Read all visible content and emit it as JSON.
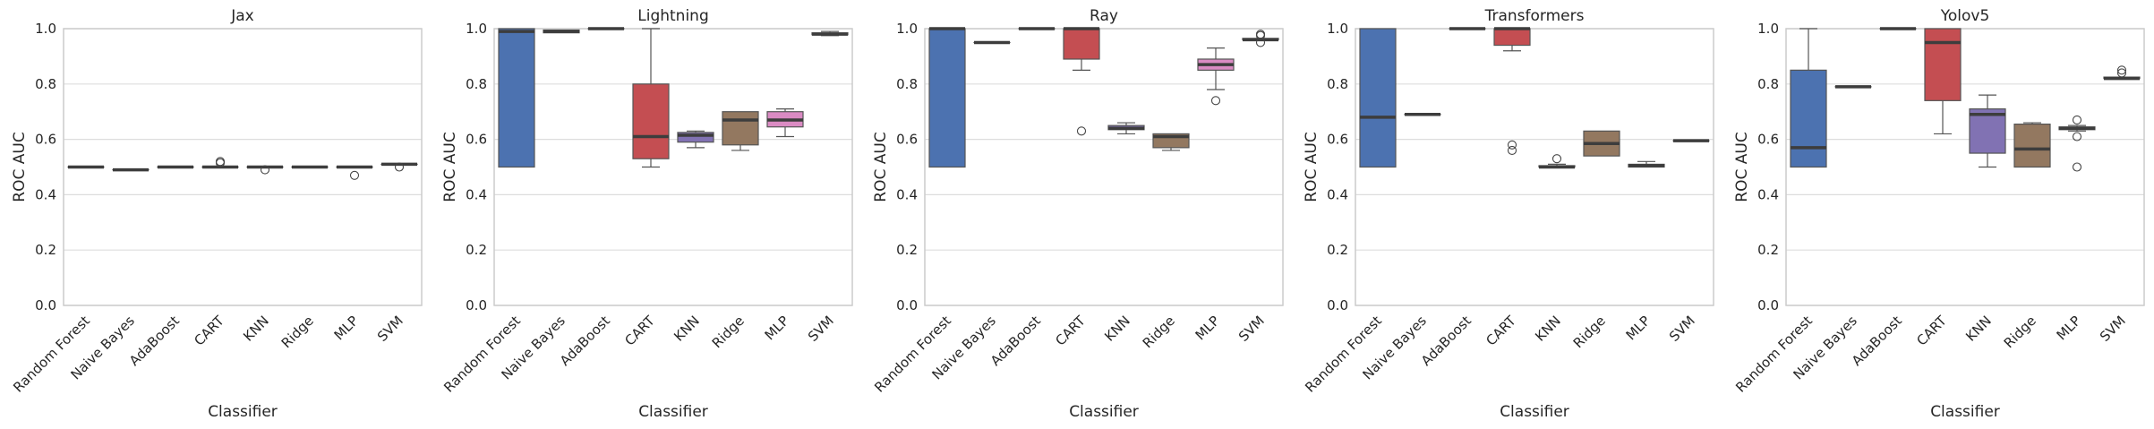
{
  "figure": {
    "shared": {
      "ylabel": "ROC AUC",
      "xlabel": "Classifier",
      "ylim": [
        0,
        1
      ],
      "yticks": [
        0.0,
        0.2,
        0.4,
        0.6,
        0.8,
        1.0
      ],
      "ytick_labels": [
        "0.0",
        "0.2",
        "0.4",
        "0.6",
        "0.8",
        "1.0"
      ],
      "grid": "horizontal"
    },
    "palette": {
      "Random Forest": "#4c72b0",
      "Naive Bayes": "#dd8452",
      "AdaBoost": "#55a868",
      "CART": "#c44e52",
      "KNN": "#8172b3",
      "Ridge": "#937860",
      "MLP": "#da8bc3",
      "SVM": "#8c8c8c"
    },
    "median_color": "#3d3d3d"
  },
  "chart_data": [
    {
      "type": "box",
      "title": "Jax",
      "xlabel": "Classifier",
      "ylabel": "ROC AUC",
      "ylim": [
        0,
        1
      ],
      "categories": [
        "Random Forest",
        "Naive Bayes",
        "AdaBoost",
        "CART",
        "KNN",
        "Ridge",
        "MLP",
        "SVM"
      ],
      "boxes": [
        {
          "category": "Random Forest",
          "whislo": 0.5,
          "q1": 0.5,
          "med": 0.5,
          "q3": 0.5,
          "whishi": 0.5,
          "fliers": []
        },
        {
          "category": "Naive Bayes",
          "whislo": 0.49,
          "q1": 0.49,
          "med": 0.49,
          "q3": 0.49,
          "whishi": 0.49,
          "fliers": []
        },
        {
          "category": "AdaBoost",
          "whislo": 0.5,
          "q1": 0.5,
          "med": 0.5,
          "q3": 0.5,
          "whishi": 0.5,
          "fliers": []
        },
        {
          "category": "CART",
          "whislo": 0.5,
          "q1": 0.5,
          "med": 0.5,
          "q3": 0.5,
          "whishi": 0.5,
          "fliers": [
            0.52,
            0.515
          ]
        },
        {
          "category": "KNN",
          "whislo": 0.5,
          "q1": 0.5,
          "med": 0.5,
          "q3": 0.5,
          "whishi": 0.5,
          "fliers": [
            0.49
          ]
        },
        {
          "category": "Ridge",
          "whislo": 0.5,
          "q1": 0.5,
          "med": 0.5,
          "q3": 0.5,
          "whishi": 0.5,
          "fliers": []
        },
        {
          "category": "MLP",
          "whislo": 0.5,
          "q1": 0.5,
          "med": 0.5,
          "q3": 0.5,
          "whishi": 0.5,
          "fliers": [
            0.47
          ]
        },
        {
          "category": "SVM",
          "whislo": 0.51,
          "q1": 0.51,
          "med": 0.51,
          "q3": 0.51,
          "whishi": 0.51,
          "fliers": [
            0.5
          ]
        }
      ]
    },
    {
      "type": "box",
      "title": "Lightning",
      "xlabel": "Classifier",
      "ylabel": "ROC AUC",
      "ylim": [
        0,
        1
      ],
      "categories": [
        "Random Forest",
        "Naive Bayes",
        "AdaBoost",
        "CART",
        "KNN",
        "Ridge",
        "MLP",
        "SVM"
      ],
      "boxes": [
        {
          "category": "Random Forest",
          "whislo": 0.5,
          "q1": 0.5,
          "med": 0.99,
          "q3": 1.0,
          "whishi": 1.0,
          "fliers": []
        },
        {
          "category": "Naive Bayes",
          "whislo": 0.985,
          "q1": 0.985,
          "med": 0.99,
          "q3": 0.995,
          "whishi": 0.995,
          "fliers": []
        },
        {
          "category": "AdaBoost",
          "whislo": 1.0,
          "q1": 1.0,
          "med": 1.0,
          "q3": 1.0,
          "whishi": 1.0,
          "fliers": []
        },
        {
          "category": "CART",
          "whislo": 0.5,
          "q1": 0.53,
          "med": 0.61,
          "q3": 0.8,
          "whishi": 1.0,
          "fliers": []
        },
        {
          "category": "KNN",
          "whislo": 0.57,
          "q1": 0.59,
          "med": 0.615,
          "q3": 0.625,
          "whishi": 0.63,
          "fliers": []
        },
        {
          "category": "Ridge",
          "whislo": 0.56,
          "q1": 0.58,
          "med": 0.67,
          "q3": 0.7,
          "whishi": 0.7,
          "fliers": []
        },
        {
          "category": "MLP",
          "whislo": 0.61,
          "q1": 0.645,
          "med": 0.67,
          "q3": 0.7,
          "whishi": 0.71,
          "fliers": []
        },
        {
          "category": "SVM",
          "whislo": 0.975,
          "q1": 0.978,
          "med": 0.98,
          "q3": 0.985,
          "whishi": 0.99,
          "fliers": []
        }
      ]
    },
    {
      "type": "box",
      "title": "Ray",
      "xlabel": "Classifier",
      "ylabel": "ROC AUC",
      "ylim": [
        0,
        1
      ],
      "categories": [
        "Random Forest",
        "Naive Bayes",
        "AdaBoost",
        "CART",
        "KNN",
        "Ridge",
        "MLP",
        "SVM"
      ],
      "boxes": [
        {
          "category": "Random Forest",
          "whislo": 0.5,
          "q1": 0.5,
          "med": 1.0,
          "q3": 1.0,
          "whishi": 1.0,
          "fliers": []
        },
        {
          "category": "Naive Bayes",
          "whislo": 0.95,
          "q1": 0.95,
          "med": 0.95,
          "q3": 0.95,
          "whishi": 0.95,
          "fliers": []
        },
        {
          "category": "AdaBoost",
          "whislo": 1.0,
          "q1": 1.0,
          "med": 1.0,
          "q3": 1.0,
          "whishi": 1.0,
          "fliers": []
        },
        {
          "category": "CART",
          "whislo": 0.85,
          "q1": 0.89,
          "med": 1.0,
          "q3": 1.0,
          "whishi": 1.0,
          "fliers": [
            0.63
          ]
        },
        {
          "category": "KNN",
          "whislo": 0.62,
          "q1": 0.635,
          "med": 0.64,
          "q3": 0.65,
          "whishi": 0.66,
          "fliers": []
        },
        {
          "category": "Ridge",
          "whislo": 0.56,
          "q1": 0.57,
          "med": 0.61,
          "q3": 0.62,
          "whishi": 0.62,
          "fliers": []
        },
        {
          "category": "MLP",
          "whislo": 0.78,
          "q1": 0.85,
          "med": 0.87,
          "q3": 0.89,
          "whishi": 0.93,
          "fliers": [
            0.74
          ]
        },
        {
          "category": "SVM",
          "whislo": 0.96,
          "q1": 0.96,
          "med": 0.96,
          "q3": 0.965,
          "whishi": 0.965,
          "fliers": [
            0.98,
            0.975,
            0.95
          ]
        }
      ]
    },
    {
      "type": "box",
      "title": "Transformers",
      "xlabel": "Classifier",
      "ylabel": "ROC AUC",
      "ylim": [
        0,
        1
      ],
      "categories": [
        "Random Forest",
        "Naive Bayes",
        "AdaBoost",
        "CART",
        "KNN",
        "Ridge",
        "MLP",
        "SVM"
      ],
      "boxes": [
        {
          "category": "Random Forest",
          "whislo": 0.5,
          "q1": 0.5,
          "med": 0.68,
          "q3": 1.0,
          "whishi": 1.0,
          "fliers": []
        },
        {
          "category": "Naive Bayes",
          "whislo": 0.69,
          "q1": 0.69,
          "med": 0.69,
          "q3": 0.69,
          "whishi": 0.69,
          "fliers": []
        },
        {
          "category": "AdaBoost",
          "whislo": 1.0,
          "q1": 1.0,
          "med": 1.0,
          "q3": 1.0,
          "whishi": 1.0,
          "fliers": []
        },
        {
          "category": "CART",
          "whislo": 0.92,
          "q1": 0.94,
          "med": 1.0,
          "q3": 1.0,
          "whishi": 1.0,
          "fliers": [
            0.58,
            0.56
          ]
        },
        {
          "category": "KNN",
          "whislo": 0.5,
          "q1": 0.5,
          "med": 0.5,
          "q3": 0.505,
          "whishi": 0.51,
          "fliers": [
            0.53
          ]
        },
        {
          "category": "Ridge",
          "whislo": 0.54,
          "q1": 0.54,
          "med": 0.585,
          "q3": 0.63,
          "whishi": 0.63,
          "fliers": []
        },
        {
          "category": "MLP",
          "whislo": 0.5,
          "q1": 0.5,
          "med": 0.505,
          "q3": 0.51,
          "whishi": 0.52,
          "fliers": []
        },
        {
          "category": "SVM",
          "whislo": 0.595,
          "q1": 0.595,
          "med": 0.595,
          "q3": 0.595,
          "whishi": 0.595,
          "fliers": []
        }
      ]
    },
    {
      "type": "box",
      "title": "Yolov5",
      "xlabel": "Classifier",
      "ylabel": "ROC AUC",
      "ylim": [
        0,
        1
      ],
      "categories": [
        "Random Forest",
        "Naive Bayes",
        "AdaBoost",
        "CART",
        "KNN",
        "Ridge",
        "MLP",
        "SVM"
      ],
      "boxes": [
        {
          "category": "Random Forest",
          "whislo": 0.5,
          "q1": 0.5,
          "med": 0.57,
          "q3": 0.85,
          "whishi": 1.0,
          "fliers": []
        },
        {
          "category": "Naive Bayes",
          "whislo": 0.79,
          "q1": 0.79,
          "med": 0.79,
          "q3": 0.79,
          "whishi": 0.79,
          "fliers": []
        },
        {
          "category": "AdaBoost",
          "whislo": 1.0,
          "q1": 1.0,
          "med": 1.0,
          "q3": 1.0,
          "whishi": 1.0,
          "fliers": []
        },
        {
          "category": "CART",
          "whislo": 0.62,
          "q1": 0.74,
          "med": 0.95,
          "q3": 1.0,
          "whishi": 1.0,
          "fliers": []
        },
        {
          "category": "KNN",
          "whislo": 0.5,
          "q1": 0.55,
          "med": 0.69,
          "q3": 0.71,
          "whishi": 0.76,
          "fliers": []
        },
        {
          "category": "Ridge",
          "whislo": 0.5,
          "q1": 0.5,
          "med": 0.565,
          "q3": 0.655,
          "whishi": 0.66,
          "fliers": []
        },
        {
          "category": "MLP",
          "whislo": 0.63,
          "q1": 0.635,
          "med": 0.64,
          "q3": 0.645,
          "whishi": 0.65,
          "fliers": [
            0.67,
            0.61,
            0.5
          ]
        },
        {
          "category": "SVM",
          "whislo": 0.82,
          "q1": 0.82,
          "med": 0.82,
          "q3": 0.825,
          "whishi": 0.825,
          "fliers": [
            0.85,
            0.84
          ]
        }
      ]
    }
  ]
}
